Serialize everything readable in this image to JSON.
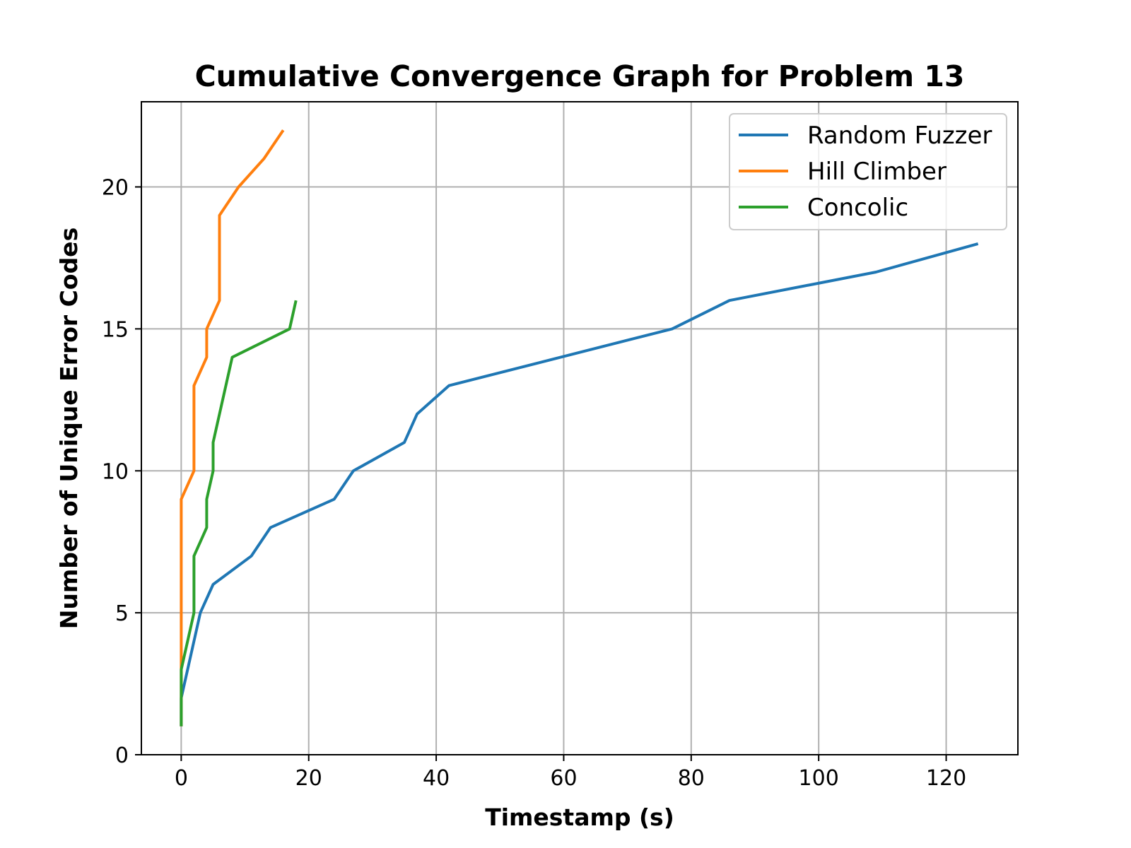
{
  "chart_data": {
    "type": "line",
    "title": "Cumulative Convergence Graph for Problem 13",
    "xlabel": "Timestamp (s)",
    "ylabel": "Number of Unique Error Codes",
    "xlim": [
      -6.25,
      131.25
    ],
    "ylim": [
      0,
      23
    ],
    "xticks": [
      0,
      20,
      40,
      60,
      80,
      100,
      120
    ],
    "yticks": [
      0,
      5,
      10,
      15,
      20
    ],
    "grid": true,
    "legend_position": "top-right",
    "series": [
      {
        "name": "Random Fuzzer",
        "color": "#1f77b4",
        "x": [
          0,
          0,
          3,
          5,
          11,
          14,
          24,
          27,
          35,
          37,
          42,
          77,
          86,
          109,
          125
        ],
        "y": [
          1,
          2,
          5,
          6,
          7,
          8,
          9,
          10,
          11,
          12,
          13,
          15,
          16,
          17,
          18
        ]
      },
      {
        "name": "Hill Climber",
        "color": "#ff7f0e",
        "x": [
          0,
          0,
          0,
          2,
          2,
          4,
          4,
          6,
          6,
          9,
          13,
          16
        ],
        "y": [
          1,
          3,
          9,
          10,
          13,
          14,
          15,
          16,
          19,
          20,
          21,
          22
        ]
      },
      {
        "name": "Concolic",
        "color": "#2ca02c",
        "x": [
          0,
          0,
          2,
          2,
          4,
          4,
          5,
          5,
          8,
          17,
          18
        ],
        "y": [
          1,
          3,
          5,
          7,
          8,
          9,
          10,
          11,
          14,
          15,
          16
        ]
      }
    ]
  }
}
